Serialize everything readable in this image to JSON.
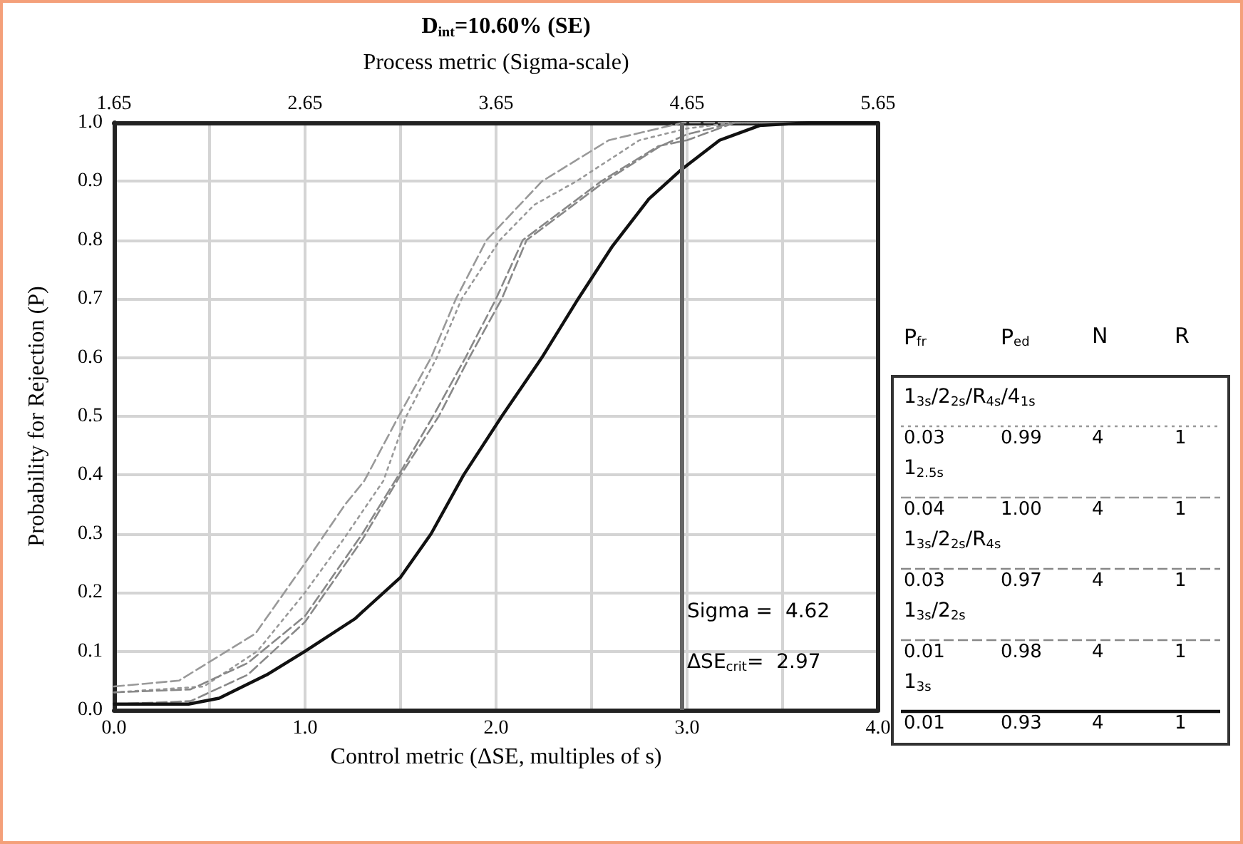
{
  "chart_data": {
    "type": "line",
    "title": "D$_{int}$=10.60% (SE)",
    "xlabel": "Control metric (ΔSE, multiples of s)",
    "x2label": "Process metric (Sigma-scale)",
    "ylabel": "Probability for Rejection (P)",
    "xlim": [
      0,
      4
    ],
    "ylim": [
      0,
      1
    ],
    "x2lim": [
      1.65,
      5.65
    ],
    "xticks": [
      {
        "value": 0,
        "label": "0.0"
      },
      {
        "value": 0.5,
        "label": null
      },
      {
        "value": 1,
        "label": "1.0"
      },
      {
        "value": 1.5,
        "label": null
      },
      {
        "value": 2,
        "label": "2.0"
      },
      {
        "value": 2.5,
        "label": null
      },
      {
        "value": 3,
        "label": "3.0"
      },
      {
        "value": 3.5,
        "label": null
      },
      {
        "value": 4,
        "label": "4.0"
      }
    ],
    "x2ticks": [
      1.65,
      2.65,
      3.65,
      4.65,
      5.65
    ],
    "yticks": [
      {
        "value": 0,
        "label": "0.0"
      },
      {
        "value": 0.1,
        "label": "0.1"
      },
      {
        "value": 0.2,
        "label": "0.2"
      },
      {
        "value": 0.3,
        "label": "0.3"
      },
      {
        "value": 0.4,
        "label": "0.4"
      },
      {
        "value": 0.5,
        "label": "0.5"
      },
      {
        "value": 0.6,
        "label": "0.6"
      },
      {
        "value": 0.7,
        "label": "0.7"
      },
      {
        "value": 0.8,
        "label": "0.8"
      },
      {
        "value": 0.9,
        "label": "0.9"
      },
      {
        "value": 1,
        "label": "1.0"
      }
    ],
    "grid": true,
    "legend": "right",
    "marker": "none",
    "series": [
      {
        "name": "1$_{3s}$/2$_{2s}$/R$_{4s}$/4$_{1s}$",
        "color": "#999999",
        "line_style": "dotted",
        "x": [
          0,
          0.47,
          0.75,
          1.0,
          1.2,
          1.41,
          1.53,
          1.69,
          1.82,
          2.02,
          2.2,
          2.42,
          2.75,
          3.0,
          3.25,
          4.0
        ],
        "values": [
          0.03,
          0.04,
          0.1,
          0.2,
          0.29,
          0.39,
          0.5,
          0.6,
          0.7,
          0.8,
          0.86,
          0.9,
          0.97,
          0.99,
          1.0,
          1.0
        ]
      },
      {
        "name": "1$_{2.5s}$",
        "color": "#999999",
        "line_style": "dashed",
        "x": [
          0,
          0.34,
          0.74,
          1.0,
          1.21,
          1.31,
          1.49,
          1.66,
          1.79,
          1.95,
          2.24,
          2.59,
          2.98,
          4.0
        ],
        "values": [
          0.04,
          0.05,
          0.13,
          0.25,
          0.35,
          0.39,
          0.5,
          0.6,
          0.7,
          0.8,
          0.9,
          0.97,
          1.0,
          1.0
        ]
      },
      {
        "name": "1$_{3s}$/2$_{2s}$/R$_{4s}$",
        "color": "#888888",
        "line_style": "dashed",
        "x": [
          0,
          0.4,
          0.7,
          1.0,
          1.3,
          1.49,
          1.67,
          1.84,
          2.0,
          2.14,
          2.55,
          2.85,
          3.0,
          3.25,
          4.0
        ],
        "values": [
          0.03,
          0.035,
          0.08,
          0.16,
          0.3,
          0.4,
          0.5,
          0.6,
          0.7,
          0.8,
          0.9,
          0.96,
          0.97,
          1.0,
          1.0
        ]
      },
      {
        "name": "1$_{3s}$/2$_{2s}$",
        "color": "#888888",
        "line_style": "dashed",
        "x": [
          0,
          0.4,
          0.7,
          1.0,
          1.3,
          1.5,
          1.7,
          1.86,
          2.03,
          2.16,
          2.57,
          2.86,
          3.0,
          3.25,
          4.0
        ],
        "values": [
          0.01,
          0.015,
          0.06,
          0.15,
          0.29,
          0.4,
          0.5,
          0.6,
          0.7,
          0.8,
          0.9,
          0.96,
          0.98,
          1.0,
          1.0
        ]
      },
      {
        "name": "1$_{3s}$",
        "color": "#111111",
        "line_style": "solid",
        "x": [
          0,
          0.39,
          0.55,
          0.8,
          1.0,
          1.26,
          1.5,
          1.66,
          1.83,
          2.03,
          2.24,
          2.43,
          2.61,
          2.8,
          2.97,
          3.17,
          3.38,
          3.65,
          4.0
        ],
        "values": [
          0.01,
          0.01,
          0.02,
          0.06,
          0.1,
          0.155,
          0.226,
          0.3,
          0.4,
          0.5,
          0.6,
          0.7,
          0.79,
          0.87,
          0.92,
          0.97,
          0.995,
          1.0,
          1.0
        ]
      }
    ],
    "ref_lines": [
      {
        "axis": "x",
        "value": 2.97,
        "color": "#666666"
      }
    ],
    "annotations": [
      "P$_{fr}$",
      "P$_{ed}$",
      "N",
      "R",
      "0.03",
      "0.99",
      "4",
      "1",
      "0.04",
      "1.00",
      "4",
      "1",
      "0.03",
      "0.97",
      "4",
      "1",
      "0.01",
      "0.98",
      "4",
      "1",
      "0.01",
      "0.93",
      "4",
      "1",
      "Sigma =  4.62",
      "ΔSE$_{crit}$=  2.97"
    ]
  }
}
